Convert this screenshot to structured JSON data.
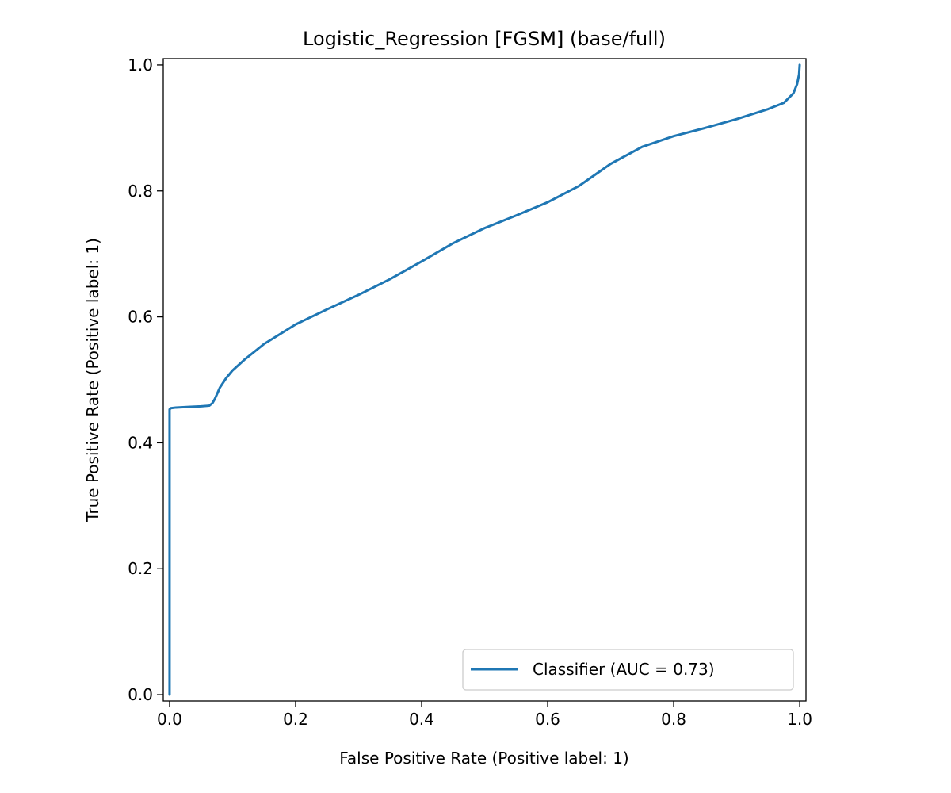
{
  "chart_data": {
    "type": "line",
    "title": "Logistic_Regression [FGSM] (base/full)",
    "xlabel": "False Positive Rate (Positive label: 1)",
    "ylabel": "True Positive Rate (Positive label: 1)",
    "xlim": [
      -0.01,
      1.01
    ],
    "ylim": [
      -0.01,
      1.01
    ],
    "xticks": [
      0.0,
      0.2,
      0.4,
      0.6,
      0.8,
      1.0
    ],
    "xtick_labels": [
      "0.0",
      "0.2",
      "0.4",
      "0.6",
      "0.8",
      "1.0"
    ],
    "yticks": [
      0.0,
      0.2,
      0.4,
      0.6,
      0.8,
      1.0
    ],
    "ytick_labels": [
      "0.0",
      "0.2",
      "0.4",
      "0.6",
      "0.8",
      "1.0"
    ],
    "grid": false,
    "legend_position": "lower-right",
    "series": [
      {
        "name": "Classifier (AUC = 0.73)",
        "color": "#1f77b4",
        "x": [
          0.0,
          0.0,
          0.0,
          0.002,
          0.01,
          0.03,
          0.05,
          0.063,
          0.068,
          0.072,
          0.08,
          0.09,
          0.1,
          0.12,
          0.15,
          0.2,
          0.25,
          0.3,
          0.35,
          0.4,
          0.45,
          0.5,
          0.55,
          0.6,
          0.65,
          0.7,
          0.75,
          0.8,
          0.85,
          0.9,
          0.95,
          0.975,
          0.99,
          0.996,
          0.999,
          1.0
        ],
        "y": [
          0.0,
          0.3,
          0.453,
          0.455,
          0.456,
          0.457,
          0.458,
          0.459,
          0.463,
          0.47,
          0.488,
          0.503,
          0.515,
          0.533,
          0.557,
          0.588,
          0.612,
          0.635,
          0.66,
          0.688,
          0.717,
          0.741,
          0.761,
          0.782,
          0.808,
          0.843,
          0.87,
          0.887,
          0.9,
          0.914,
          0.93,
          0.94,
          0.955,
          0.97,
          0.985,
          1.0
        ]
      }
    ]
  }
}
